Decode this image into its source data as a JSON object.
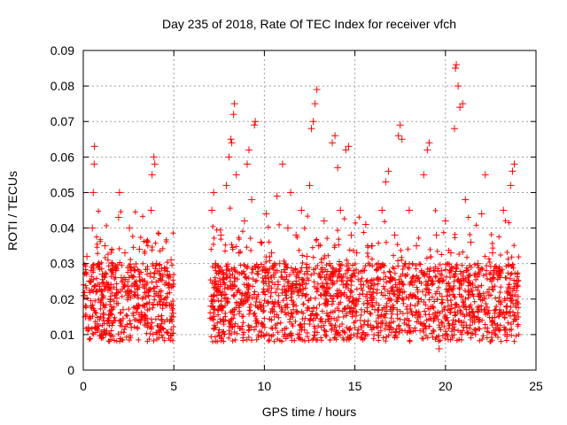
{
  "chart_data": {
    "type": "scatter",
    "title": "Day 235 of 2018, Rate Of TEC Index for receiver vfch",
    "xlabel": "GPS time / hours",
    "ylabel": "ROTI / TECUs",
    "xlim": [
      0,
      25
    ],
    "ylim": [
      0,
      0.09
    ],
    "xticks": [
      0,
      5,
      10,
      15,
      20,
      25
    ],
    "xtick_labels": [
      "0",
      "5",
      "10",
      "15",
      "20",
      "25"
    ],
    "yticks": [
      0,
      0.01,
      0.02,
      0.03,
      0.04,
      0.05,
      0.06,
      0.07,
      0.08,
      0.09
    ],
    "ytick_labels": [
      "0",
      "0.01",
      "0.02",
      "0.03",
      "0.04",
      "0.05",
      "0.06",
      "0.07",
      "0.08",
      "0.09"
    ],
    "grid": true,
    "marker": "plus",
    "color": "#ff0000",
    "data_gap_hours": [
      5.0,
      7.0
    ],
    "series": [
      {
        "name": "ROTI",
        "points": [
          [
            0.05,
            0.021
          ],
          [
            0.12,
            0.015
          ],
          [
            0.2,
            0.032
          ],
          [
            0.28,
            0.012
          ],
          [
            0.35,
            0.025
          ],
          [
            0.42,
            0.018
          ],
          [
            0.5,
            0.04
          ],
          [
            0.55,
            0.05
          ],
          [
            0.6,
            0.058
          ],
          [
            0.62,
            0.063
          ],
          [
            0.7,
            0.022
          ],
          [
            0.78,
            0.013
          ],
          [
            0.85,
            0.03
          ],
          [
            0.95,
            0.019
          ],
          [
            1.05,
            0.027
          ],
          [
            1.1,
            0.016
          ],
          [
            1.2,
            0.035
          ],
          [
            1.3,
            0.011
          ],
          [
            1.4,
            0.024
          ],
          [
            1.5,
            0.02
          ],
          [
            1.6,
            0.03
          ],
          [
            1.7,
            0.014
          ],
          [
            1.8,
            0.028
          ],
          [
            1.95,
            0.043
          ],
          [
            2.0,
            0.05
          ],
          [
            2.1,
            0.026
          ],
          [
            2.2,
            0.017
          ],
          [
            2.3,
            0.033
          ],
          [
            2.45,
            0.021
          ],
          [
            2.55,
            0.04
          ],
          [
            2.65,
            0.012
          ],
          [
            2.8,
            0.029
          ],
          [
            2.95,
            0.018
          ],
          [
            3.1,
            0.034
          ],
          [
            3.25,
            0.015
          ],
          [
            3.4,
            0.025
          ],
          [
            3.5,
            0.036
          ],
          [
            3.65,
            0.019
          ],
          [
            3.75,
            0.045
          ],
          [
            3.8,
            0.055
          ],
          [
            3.9,
            0.06
          ],
          [
            3.95,
            0.058
          ],
          [
            4.05,
            0.03
          ],
          [
            4.2,
            0.022
          ],
          [
            4.35,
            0.014
          ],
          [
            4.5,
            0.028
          ],
          [
            4.6,
            0.019
          ],
          [
            4.75,
            0.024
          ],
          [
            4.85,
            0.031
          ],
          [
            4.95,
            0.016
          ],
          [
            7.05,
            0.018
          ],
          [
            7.1,
            0.045
          ],
          [
            7.2,
            0.05
          ],
          [
            7.3,
            0.03
          ],
          [
            7.45,
            0.022
          ],
          [
            7.6,
            0.038
          ],
          [
            7.75,
            0.014
          ],
          [
            7.9,
            0.052
          ],
          [
            8.05,
            0.06
          ],
          [
            8.15,
            0.065
          ],
          [
            8.2,
            0.064
          ],
          [
            8.3,
            0.072
          ],
          [
            8.35,
            0.075
          ],
          [
            8.45,
            0.055
          ],
          [
            8.6,
            0.033
          ],
          [
            8.75,
            0.02
          ],
          [
            8.9,
            0.042
          ],
          [
            9.05,
            0.058
          ],
          [
            9.15,
            0.062
          ],
          [
            9.3,
            0.048
          ],
          [
            9.45,
            0.069
          ],
          [
            9.5,
            0.07
          ],
          [
            9.65,
            0.027
          ],
          [
            9.8,
            0.036
          ],
          [
            9.95,
            0.018
          ],
          [
            10.1,
            0.044
          ],
          [
            10.25,
            0.025
          ],
          [
            10.4,
            0.033
          ],
          [
            10.55,
            0.015
          ],
          [
            10.7,
            0.049
          ],
          [
            10.85,
            0.03
          ],
          [
            11.0,
            0.058
          ],
          [
            11.15,
            0.022
          ],
          [
            11.3,
            0.04
          ],
          [
            11.45,
            0.05
          ],
          [
            11.6,
            0.017
          ],
          [
            11.75,
            0.038
          ],
          [
            11.9,
            0.026
          ],
          [
            12.05,
            0.045
          ],
          [
            12.2,
            0.013
          ],
          [
            12.35,
            0.032
          ],
          [
            12.5,
            0.052
          ],
          [
            12.6,
            0.068
          ],
          [
            12.7,
            0.07
          ],
          [
            12.8,
            0.075
          ],
          [
            12.9,
            0.079
          ],
          [
            13.0,
            0.035
          ],
          [
            13.15,
            0.021
          ],
          [
            13.3,
            0.042
          ],
          [
            13.45,
            0.016
          ],
          [
            13.6,
            0.03
          ],
          [
            13.75,
            0.064
          ],
          [
            13.9,
            0.066
          ],
          [
            14.05,
            0.057
          ],
          [
            14.2,
            0.045
          ],
          [
            14.35,
            0.024
          ],
          [
            14.5,
            0.062
          ],
          [
            14.65,
            0.063
          ],
          [
            14.8,
            0.038
          ],
          [
            14.95,
            0.019
          ],
          [
            15.1,
            0.033
          ],
          [
            15.3,
            0.014
          ],
          [
            15.45,
            0.028
          ],
          [
            15.6,
            0.041
          ],
          [
            15.8,
            0.022
          ],
          [
            15.95,
            0.035
          ],
          [
            16.1,
            0.017
          ],
          [
            16.3,
            0.03
          ],
          [
            16.5,
            0.045
          ],
          [
            16.7,
            0.053
          ],
          [
            16.85,
            0.056
          ],
          [
            17.0,
            0.026
          ],
          [
            17.2,
            0.038
          ],
          [
            17.4,
            0.066
          ],
          [
            17.5,
            0.069
          ],
          [
            17.6,
            0.065
          ],
          [
            17.8,
            0.03
          ],
          [
            18.0,
            0.045
          ],
          [
            18.2,
            0.021
          ],
          [
            18.4,
            0.035
          ],
          [
            18.6,
            0.015
          ],
          [
            18.8,
            0.055
          ],
          [
            19.0,
            0.062
          ],
          [
            19.1,
            0.064
          ],
          [
            19.3,
            0.025
          ],
          [
            19.5,
            0.038
          ],
          [
            19.65,
            0.006
          ],
          [
            19.8,
            0.028
          ],
          [
            20.0,
            0.042
          ],
          [
            20.15,
            0.018
          ],
          [
            20.3,
            0.033
          ],
          [
            20.5,
            0.068
          ],
          [
            20.55,
            0.085
          ],
          [
            20.6,
            0.086
          ],
          [
            20.7,
            0.08
          ],
          [
            20.8,
            0.074
          ],
          [
            20.95,
            0.075
          ],
          [
            21.1,
            0.048
          ],
          [
            21.25,
            0.022
          ],
          [
            21.4,
            0.036
          ],
          [
            21.6,
            0.015
          ],
          [
            21.8,
            0.03
          ],
          [
            22.0,
            0.044
          ],
          [
            22.2,
            0.055
          ],
          [
            22.4,
            0.021
          ],
          [
            22.6,
            0.033
          ],
          [
            22.8,
            0.012
          ],
          [
            23.0,
            0.028
          ],
          [
            23.2,
            0.045
          ],
          [
            23.4,
            0.018
          ],
          [
            23.6,
            0.052
          ],
          [
            23.7,
            0.056
          ],
          [
            23.8,
            0.058
          ],
          [
            23.95,
            0.025
          ]
        ]
      }
    ]
  }
}
